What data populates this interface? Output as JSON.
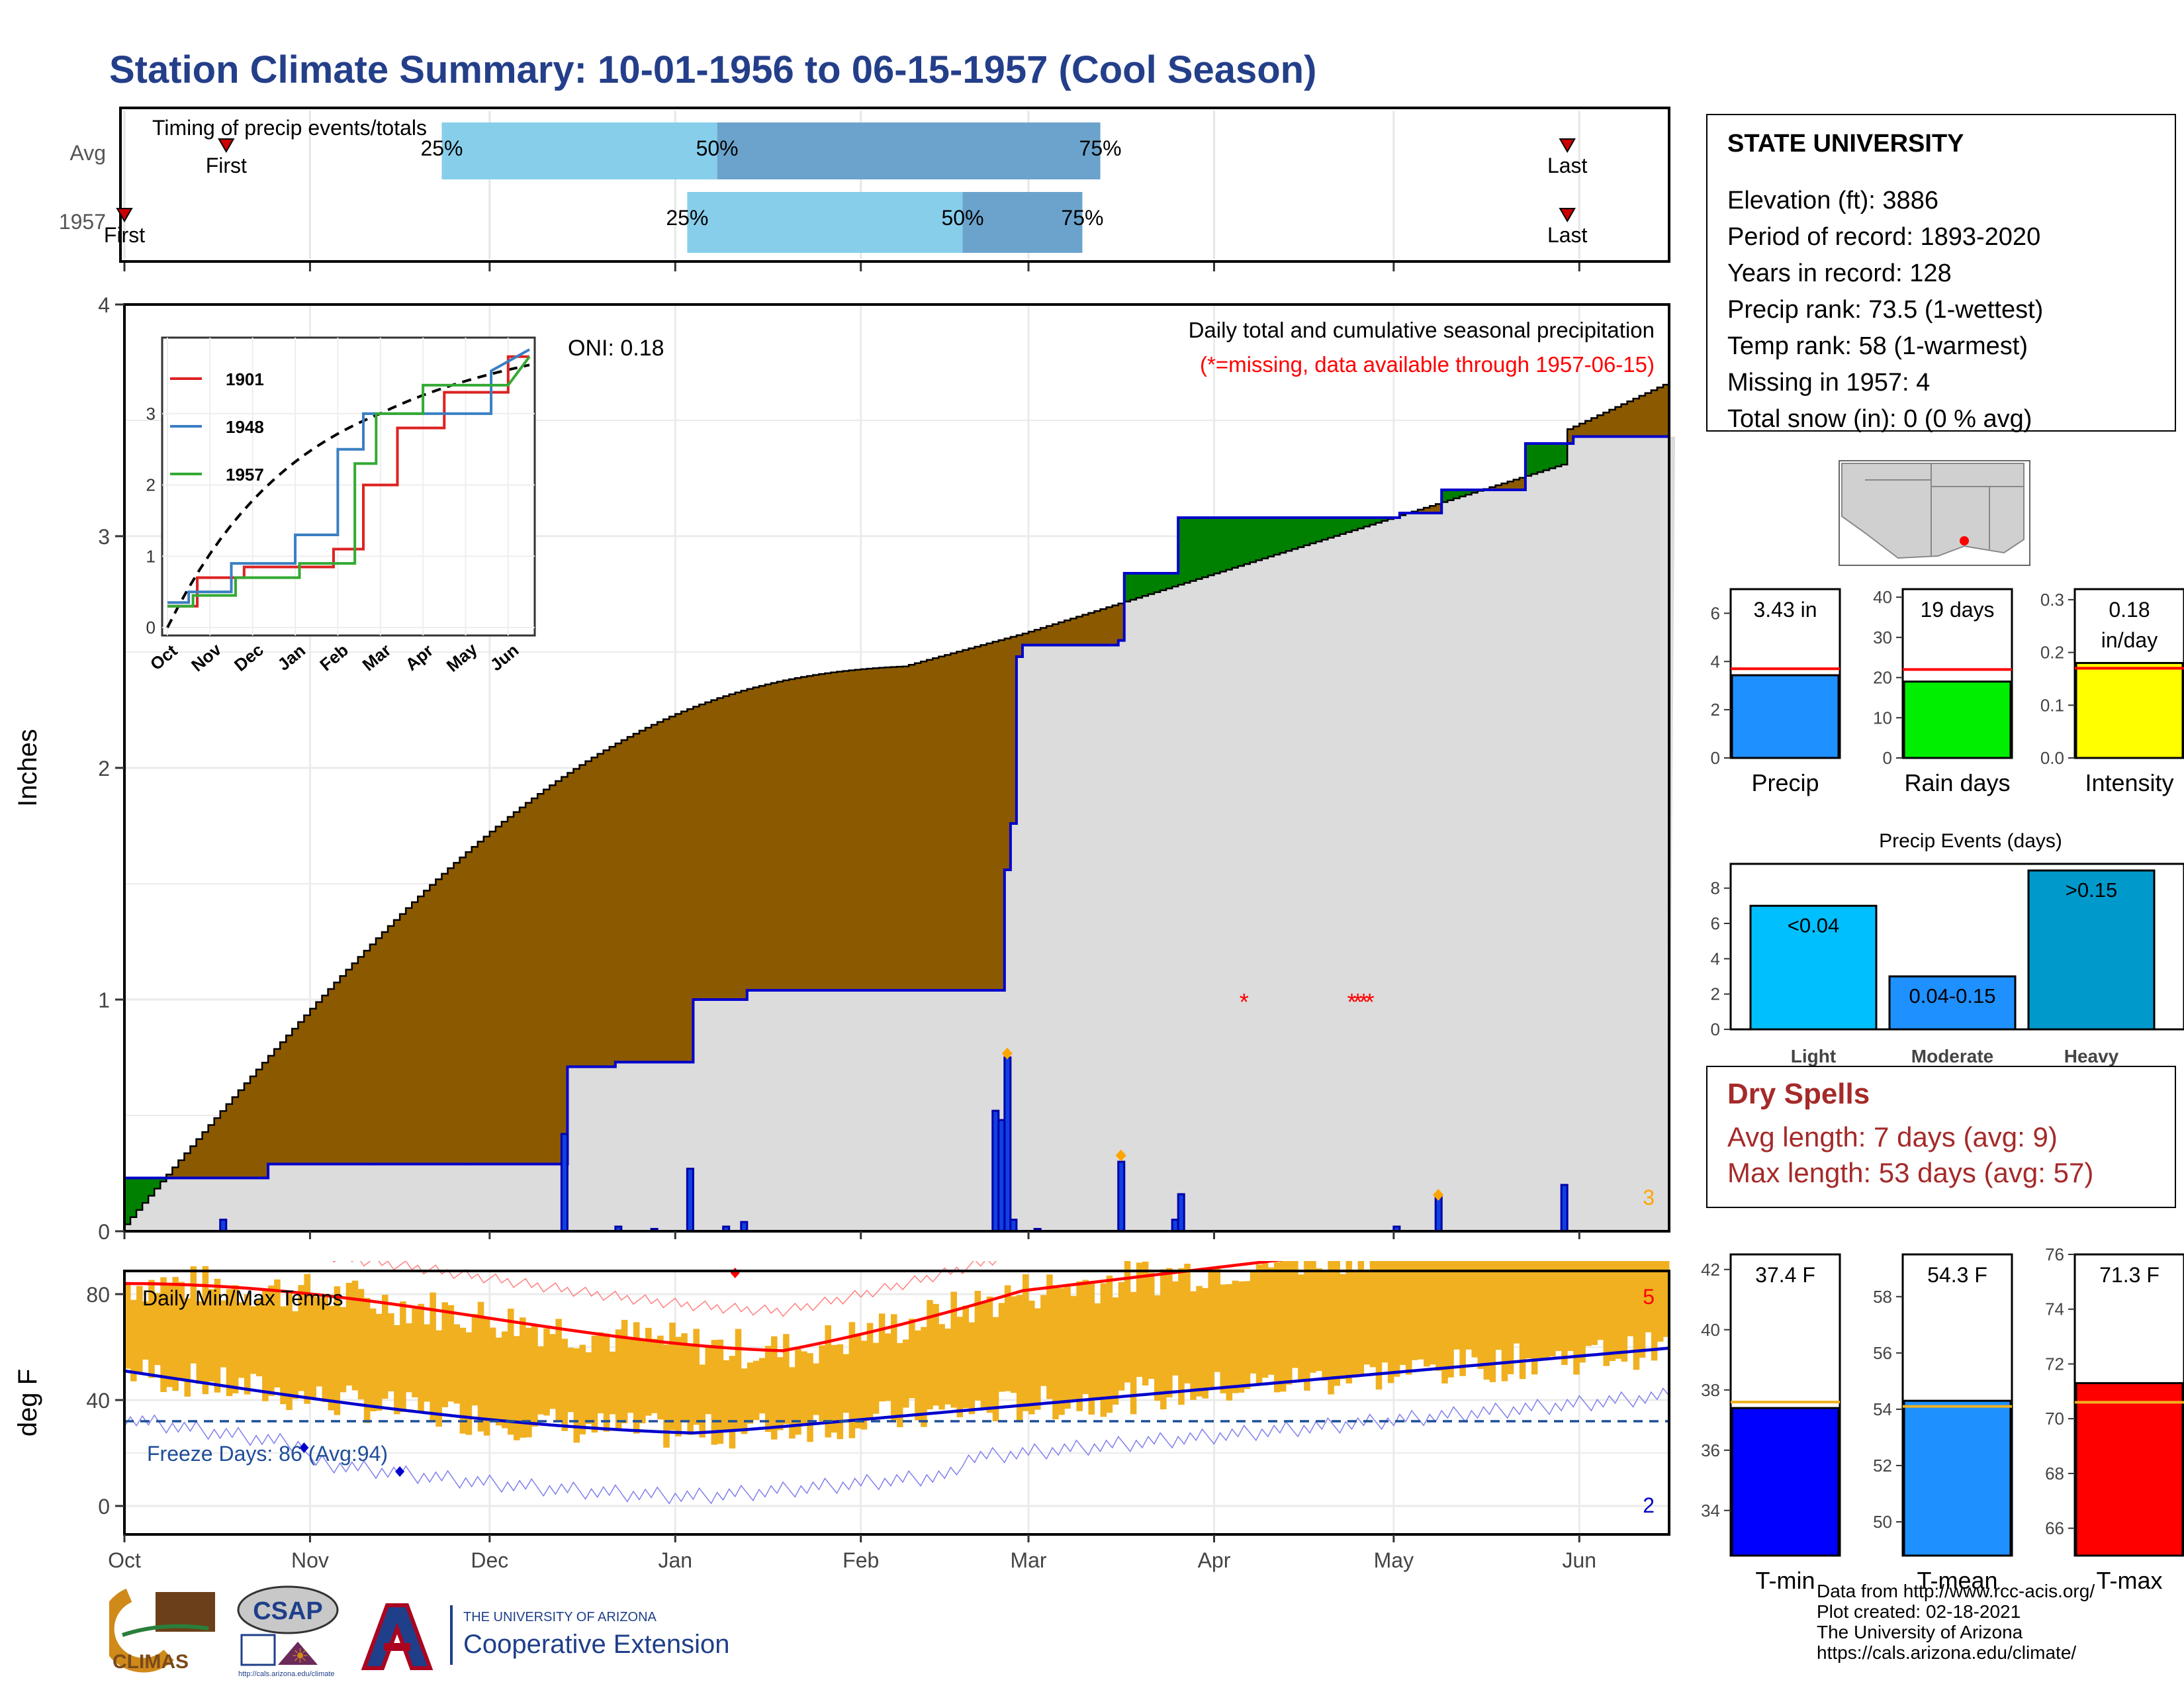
{
  "title": "Station Climate Summary: 10-01-1956 to 06-15-1957 (Cool Season)",
  "timing": {
    "title": "Timing of precip events/totals",
    "rows": [
      {
        "label": "Avg",
        "first_label": "First",
        "last_label": "Last",
        "first_day": 17,
        "last_day": 241,
        "p25": 53,
        "p50": 99,
        "p75": 163,
        "p25_label": "25%",
        "p50_label": "50%",
        "p75_label": "75%"
      },
      {
        "label": "1957",
        "first_label": "First",
        "last_label": "Last",
        "first_day": 0,
        "last_day": 241,
        "p25": 94,
        "p50": 140,
        "p75": 160,
        "p25_label": "25%",
        "p50_label": "50%",
        "p75_label": "75%"
      }
    ],
    "colors": {
      "light": "#87ceeb",
      "dark": "#6ba3cc",
      "marker": "#cc0000"
    }
  },
  "precip_chart": {
    "ylabel": "Inches",
    "oni": "ONI: 0.18",
    "legend_title": "Daily total and cumulative seasonal precipitation",
    "missing_note": "(*=missing, data available through 1957-06-15)",
    "corner_count": "3",
    "colors": {
      "deficit": "#8b5a00",
      "surplus": "#008000",
      "cum": "#0000cc",
      "bg": "#dcdcdc",
      "missing": "#ff0000",
      "diamond": "#ffa500"
    }
  },
  "inset": {
    "series": [
      {
        "name": "1901",
        "color": "#dd2222"
      },
      {
        "name": "1948",
        "color": "#3a7fc4"
      },
      {
        "name": "1957",
        "color": "#33aa33"
      }
    ],
    "months": [
      "Oct",
      "Nov",
      "Dec",
      "Jan",
      "Feb",
      "Mar",
      "Apr",
      "May",
      "Jun"
    ],
    "yticks": [
      "0",
      "1",
      "2",
      "3"
    ]
  },
  "temp_chart": {
    "ylabel": "deg F",
    "title": "Daily Min/Max Temps",
    "freeze": "Freeze Days: 86 (Avg:94)",
    "count_max": "5",
    "count_min": "2",
    "yticks": [
      "0",
      "40",
      "80"
    ],
    "colors": {
      "bar": "#f0b020",
      "max": "#ff0000",
      "min": "#0000cc",
      "freeze": "#1f4e99"
    }
  },
  "months": [
    "Oct",
    "Nov",
    "Dec",
    "Jan",
    "Feb",
    "Mar",
    "Apr",
    "May",
    "Jun"
  ],
  "station": {
    "name": "STATE UNIVERSITY",
    "lines": [
      "Elevation (ft): 3886",
      "Period of record: 1893-2020",
      "Years in record: 128",
      "Precip rank: 73.5 (1-wettest)",
      "Temp rank: 58 (1-warmest)",
      "Missing in 1957: 4",
      "Total snow (in): 0 (0 % avg)"
    ]
  },
  "chart_data": [
    {
      "type": "bar",
      "title": "Precip",
      "categories": [
        "Precip"
      ],
      "values": [
        3.43
      ],
      "avg": 3.7,
      "label": "3.43 in",
      "ylim": [
        0,
        7
      ],
      "yticks": [
        "0",
        "2",
        "4",
        "6"
      ],
      "color": "#1e90ff"
    },
    {
      "type": "bar",
      "title": "Rain days",
      "categories": [
        "Rain days"
      ],
      "values": [
        19
      ],
      "avg": 22,
      "label": "19 days",
      "ylim": [
        0,
        42
      ],
      "yticks": [
        "0",
        "10",
        "20",
        "30",
        "40"
      ],
      "color": "#00ee00"
    },
    {
      "type": "bar",
      "title": "Intensity",
      "categories": [
        "Intensity"
      ],
      "values": [
        0.18
      ],
      "avg": 0.17,
      "label": "0.18",
      "label2": "in/day",
      "ylim": [
        0,
        0.32
      ],
      "yticks": [
        "0.0",
        "0.1",
        "0.2",
        "0.3"
      ],
      "color": "#ffff00"
    },
    {
      "type": "bar",
      "title": "Precip Events (days)",
      "categories": [
        "Light",
        "Moderate",
        "Heavy"
      ],
      "bar_labels": [
        "<0.04",
        "0.04-0.15",
        ">0.15"
      ],
      "values": [
        7,
        3,
        9
      ],
      "ylim": [
        0,
        9
      ],
      "yticks": [
        "0",
        "2",
        "4",
        "6",
        "8"
      ],
      "colors": [
        "#00bfff",
        "#1e90ff",
        "#0099cc"
      ]
    },
    {
      "type": "bar",
      "title": "T-min",
      "categories": [
        "T-min"
      ],
      "values": [
        37.4
      ],
      "avg": 37.6,
      "label": "37.4 F",
      "ylim": [
        32.5,
        42.5
      ],
      "yticks": [
        "34",
        "36",
        "38",
        "40",
        "42"
      ],
      "color": "#0000ff"
    },
    {
      "type": "bar",
      "title": "T-mean",
      "categories": [
        "T-mean"
      ],
      "values": [
        54.3
      ],
      "avg": 54.1,
      "label": "54.3 F",
      "ylim": [
        48.8,
        59.5
      ],
      "yticks": [
        "50",
        "52",
        "54",
        "56",
        "58"
      ],
      "color": "#1e90ff"
    },
    {
      "type": "bar",
      "title": "T-max",
      "categories": [
        "T-max"
      ],
      "values": [
        71.3
      ],
      "avg": 70.6,
      "label": "71.3 F",
      "ylim": [
        65,
        76
      ],
      "yticks": [
        "66",
        "68",
        "70",
        "72",
        "74",
        "76"
      ],
      "color": "#ff0000"
    }
  ],
  "dry_spells": {
    "title": "Dry Spells",
    "avg": "Avg length: 7 days (avg: 9)",
    "max": "Max length: 53 days (avg: 57)"
  },
  "credits": [
    "Data from http://www.rcc-acis.org/",
    "Plot created: 02-18-2021",
    "The University of Arizona",
    "https://cals.arizona.edu/climate/"
  ],
  "logos": {
    "climas": "CLIMAS",
    "csap": "CSAP",
    "csap_url": "http://cals.arizona.edu/climate",
    "ua_top": "THE UNIVERSITY OF ARIZONA",
    "ua_bottom": "Cooperative Extension"
  }
}
